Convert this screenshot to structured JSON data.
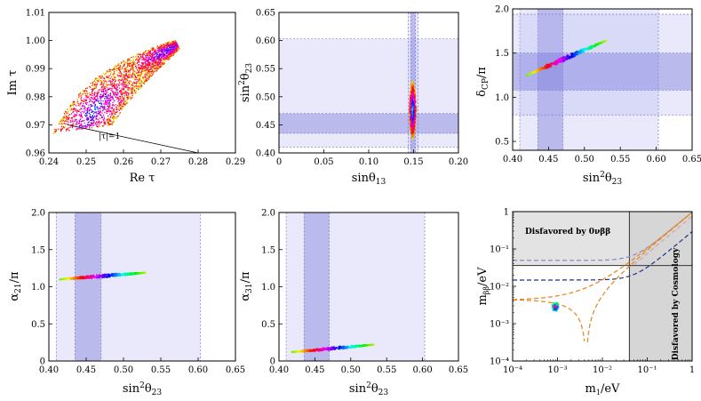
{
  "chart_data": [
    {
      "id": "p1",
      "type": "scatter",
      "xlabel": "Re τ",
      "ylabel": "Im τ",
      "xlim": [
        0.24,
        0.29
      ],
      "ylim": [
        0.96,
        1.01
      ],
      "xticks": [
        "0.24",
        "0.25",
        "0.26",
        "0.27",
        "0.28",
        "0.29"
      ],
      "yticks": [
        "0.96",
        "0.97",
        "0.98",
        "0.99",
        "1.00",
        "1.01"
      ],
      "annotation": "|τ|=1",
      "region": {
        "outer_edge": [
          [
            0.241,
            0.967
          ],
          [
            0.244,
            0.974
          ],
          [
            0.248,
            0.981
          ],
          [
            0.253,
            0.987
          ],
          [
            0.259,
            0.992
          ],
          [
            0.265,
            0.996
          ],
          [
            0.271,
            0.999
          ],
          [
            0.274,
            1.0
          ]
        ],
        "inner_edge": [
          [
            0.257,
            0.97
          ],
          [
            0.26,
            0.976
          ],
          [
            0.264,
            0.982
          ],
          [
            0.268,
            0.988
          ],
          [
            0.272,
            0.993
          ],
          [
            0.275,
            0.997
          ]
        ]
      },
      "boundary_line": {
        "x": [
          0.245,
          0.28
        ],
        "y": [
          0.97,
          0.96
        ]
      }
    },
    {
      "id": "p2",
      "type": "scatter",
      "xlabel": "sinθ13",
      "ylabel": "sin²θ23",
      "xlim": [
        0,
        0.2
      ],
      "ylim": [
        0.4,
        0.65
      ],
      "xticks": [
        "0",
        "0.05",
        "0.10",
        "0.15",
        "0.20"
      ],
      "yticks": [
        "0.40",
        "0.45",
        "0.50",
        "0.55",
        "0.60",
        "0.65"
      ],
      "bands": [
        {
          "axis": "y",
          "range": [
            0.41,
            0.603
          ],
          "level": 1
        },
        {
          "axis": "y",
          "range": [
            0.435,
            0.47
          ],
          "level": 2
        },
        {
          "axis": "x",
          "range": [
            0.144,
            0.155
          ],
          "level": 1
        },
        {
          "axis": "x",
          "range": [
            0.147,
            0.152
          ],
          "level": 2
        }
      ],
      "cluster": {
        "x_center": 0.149,
        "x_halfwidth": 0.0035,
        "y_range": [
          0.425,
          0.527
        ]
      }
    },
    {
      "id": "p3",
      "type": "scatter",
      "xlabel": "sin²θ23",
      "ylabel": "δCP/π",
      "xlim": [
        0.4,
        0.65
      ],
      "ylim": [
        0.4,
        2.0
      ],
      "xticks": [
        "0.40",
        "0.45",
        "0.50",
        "0.55",
        "0.60",
        "0.65"
      ],
      "yticks": [
        "0.5",
        "1.0",
        "1.5",
        "2.0"
      ],
      "bands": [
        {
          "axis": "x",
          "range": [
            0.41,
            0.603
          ],
          "level": 1
        },
        {
          "axis": "x",
          "range": [
            0.435,
            0.47
          ],
          "level": 2
        },
        {
          "axis": "y",
          "range": [
            0.8,
            1.94
          ],
          "level": 1
        },
        {
          "axis": "y",
          "range": [
            1.08,
            1.5
          ],
          "level": 2
        }
      ],
      "curve": {
        "x": [
          0.42,
          0.53
        ],
        "y": [
          1.25,
          1.64
        ],
        "width": 0.05
      }
    },
    {
      "id": "p4",
      "type": "scatter",
      "xlabel": "sin²θ23",
      "ylabel": "α21/π",
      "xlim": [
        0.4,
        0.65
      ],
      "ylim": [
        0.0,
        2.0
      ],
      "xticks": [
        "0.40",
        "0.45",
        "0.50",
        "0.55",
        "0.60",
        "0.65"
      ],
      "yticks": [
        "0",
        "0.5",
        "1.0",
        "1.5",
        "2.0"
      ],
      "bands": [
        {
          "axis": "x",
          "range": [
            0.41,
            0.603
          ],
          "level": 1
        },
        {
          "axis": "x",
          "range": [
            0.435,
            0.47
          ],
          "level": 2
        }
      ],
      "curve": {
        "x": [
          0.415,
          0.53
        ],
        "y": [
          1.1,
          1.19
        ],
        "width": 0.04
      }
    },
    {
      "id": "p5",
      "type": "scatter",
      "xlabel": "sin²θ23",
      "ylabel": "α31/π",
      "xlim": [
        0.4,
        0.65
      ],
      "ylim": [
        0.0,
        2.0
      ],
      "xticks": [
        "0.40",
        "0.45",
        "0.50",
        "0.55",
        "0.60",
        "0.65"
      ],
      "yticks": [
        "0",
        "0.5",
        "1.0",
        "1.5",
        "2.0"
      ],
      "bands": [
        {
          "axis": "x",
          "range": [
            0.41,
            0.603
          ],
          "level": 1
        },
        {
          "axis": "x",
          "range": [
            0.435,
            0.47
          ],
          "level": 2
        }
      ],
      "curve": {
        "x": [
          0.418,
          0.532
        ],
        "y": [
          0.12,
          0.22
        ],
        "width": 0.035
      }
    },
    {
      "id": "p6",
      "type": "line",
      "xlabel": "m1/eV",
      "ylabel": "mββ/eV",
      "xscale": "log",
      "yscale": "log",
      "xlim": [
        0.0001,
        1
      ],
      "ylim": [
        0.0001,
        1
      ],
      "xticks": [
        "10⁻⁴",
        "10⁻³",
        "10⁻²",
        "10⁻¹",
        "1"
      ],
      "yticks": [
        "10⁻⁴",
        "10⁻³",
        "10⁻²",
        "10⁻¹",
        "1"
      ],
      "excluded_regions": [
        {
          "label": "Disfavored by 0νββ",
          "ymin": 0.036
        },
        {
          "label": "Disfavored by Cosmology",
          "xmin": 0.04
        }
      ],
      "cluster": {
        "x": 0.0009,
        "y": 0.0028
      }
    }
  ]
}
